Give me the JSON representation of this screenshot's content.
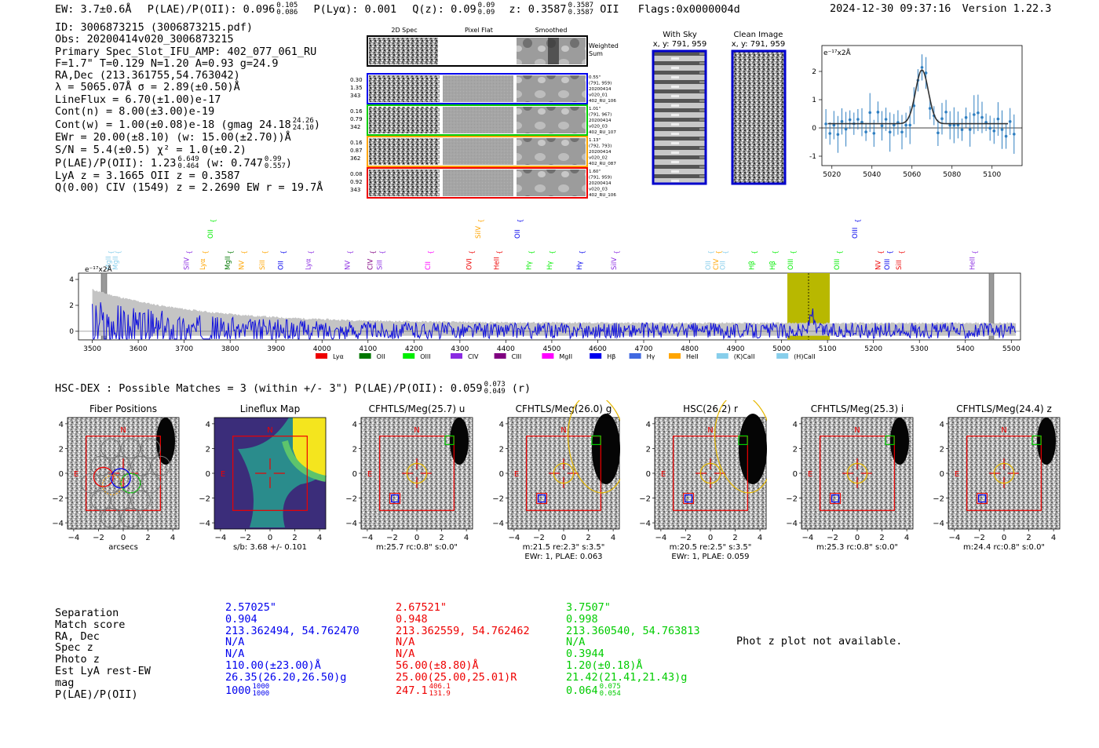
{
  "header": {
    "ew": "EW: 3.7±0.6Å",
    "plae_label": "P(LAE)/P(OII): 0.096",
    "plae_hi": "0.105",
    "plae_lo": "0.086",
    "plya": "P(Lyα): 0.001",
    "qz_label": "Q(z): 0.09",
    "qz_hi": "0.09",
    "qz_lo": "0.09",
    "z_label": "z: 0.3587",
    "z_hi": "0.3587",
    "z_lo": "0.3587",
    "z_line": "OII",
    "flags": "Flags:0x0000004d",
    "timestamp": "2024-12-30 09:37:16",
    "version": "Version 1.22.3"
  },
  "info": {
    "id": "ID: 3006873215 (3006873215.pdf)",
    "obs": "Obs: 20200414v020_3006873215",
    "slot": "Primary Spec_Slot_IFU_AMP: 402_077_061_RU",
    "fwhm": "F=1.7\"  T=0.129  N=1.20  A=0.93  g=24.9",
    "radec": "RA,Dec (213.361755,54.763042)",
    "lambda": "λ = 5065.07Å  σ = 2.89(±0.50)Å",
    "lineflux": "LineFlux = 6.70(±1.00)e-17",
    "contn": "Cont(n) = 8.00(±3.00)e-19",
    "contw": "Cont(w) = 1.00(±0.08)e-18 (gmag 24.18",
    "contw_hi": "24.26",
    "contw_lo": "24.10",
    "contw_end": ")",
    "ewr": "EWr = 20.00(±8.10) (w: 15.00(±2.70))Å",
    "sn": "S/N = 5.4(±0.5)  χ² = 1.0(±0.2)",
    "plae": "P(LAE)/P(OII): 1.23",
    "plae_hi": "6.649",
    "plae_lo": "0.464",
    "plae_w": "(w: 0.747",
    "plae_w_hi": "0.99",
    "plae_w_lo": "0.557",
    "plae_end": ")",
    "lyaz": "LyA z = 3.1665  OII z = 0.3587",
    "civ": "Q(0.00) CIV (1549) z = 2.2690  EW r = 19.7Å"
  },
  "cutouts": {
    "col_2d": "2D Spec",
    "col_flat": "Pixel Flat",
    "col_smooth": "Smoothed",
    "weighted": [
      "Weighted",
      "Sum"
    ],
    "rows": [
      {
        "left": [
          "0.30",
          "1.35",
          "343"
        ],
        "right": [
          "0.55\"",
          "(791, 959)",
          "20200414",
          "v020_01",
          "402_RU_106"
        ],
        "color": "#0000ee"
      },
      {
        "left": [
          "0.16",
          "0.79",
          "342"
        ],
        "right": [
          "1.01\"",
          "(791, 967)",
          "20200414",
          "v020_03",
          "402_RU_107"
        ],
        "color": "#00cc00"
      },
      {
        "left": [
          "0.16",
          "0.87",
          "362"
        ],
        "right": [
          "1.13\"",
          "(792, 793)",
          "20200414",
          "v020_02",
          "402_RU_087"
        ],
        "color": "#ffa500"
      },
      {
        "left": [
          "0.08",
          "0.92",
          "343"
        ],
        "right": [
          "1.60\"",
          "(791, 959)",
          "20200414",
          "v020_03",
          "402_RU_106"
        ],
        "color": "#ee0000"
      }
    ],
    "with_sky": [
      "With Sky",
      "x, y: 791, 959"
    ],
    "clean_image": [
      "Clean Image",
      "x, y: 791, 959"
    ]
  },
  "zoom_plot": {
    "unit": "e⁻¹⁷x2Å",
    "yticks": [
      "2",
      "1",
      "0",
      "-1"
    ],
    "xticks": [
      "5020",
      "5040",
      "5060",
      "5080",
      "5100"
    ]
  },
  "spectrum": {
    "unit": "e⁻¹⁷x2Å",
    "yticks": [
      "4",
      "2",
      "0"
    ],
    "xticks": [
      "3500",
      "3600",
      "3700",
      "3800",
      "3900",
      "4000",
      "4100",
      "4200",
      "4300",
      "4400",
      "4500",
      "4600",
      "4700",
      "4800",
      "4900",
      "5000",
      "5100",
      "5200",
      "5300",
      "5400",
      "5500"
    ],
    "legend": [
      {
        "label": "Lyα",
        "color": "#ee0000"
      },
      {
        "label": "OII",
        "color": "#007700"
      },
      {
        "label": "OIII",
        "color": "#00ee00"
      },
      {
        "label": "CIV",
        "color": "#8a2be2"
      },
      {
        "label": "CIII",
        "color": "#800080"
      },
      {
        "label": "MgII",
        "color": "#ff00ff"
      },
      {
        "label": "Hβ",
        "color": "#0000ee"
      },
      {
        "label": "Hγ",
        "color": "#4169e1"
      },
      {
        "label": "HeII",
        "color": "#ffa500"
      },
      {
        "label": "(K)CaII",
        "color": "#87ceeb"
      },
      {
        "label": "(H)CaII",
        "color": "#87ceeb"
      }
    ],
    "line_labels": [
      {
        "t": "MgII",
        "c": "#87ceeb"
      },
      {
        "t": "MgII",
        "c": "#87ceeb"
      },
      {
        "t": "SiIV",
        "c": "#8a2be2"
      },
      {
        "t": "Lyα",
        "c": "#ffa500"
      },
      {
        "t": "OII",
        "c": "#00ee00"
      },
      {
        "t": "MgII",
        "c": "#007700"
      },
      {
        "t": "NV",
        "c": "#ffa500"
      },
      {
        "t": "SiII",
        "c": "#ffa500"
      },
      {
        "t": "OII",
        "c": "#0000ee"
      },
      {
        "t": "Lyα",
        "c": "#8a2be2"
      },
      {
        "t": "NV",
        "c": "#8a2be2"
      },
      {
        "t": "CIV",
        "c": "#800080"
      },
      {
        "t": "SiII",
        "c": "#8a2be2"
      },
      {
        "t": "CII",
        "c": "#ff00ff"
      },
      {
        "t": "OVI",
        "c": "#ee0000"
      },
      {
        "t": "SiIV",
        "c": "#ffa500"
      },
      {
        "t": "HeII",
        "c": "#ee0000"
      },
      {
        "t": "OII",
        "c": "#0000ee"
      },
      {
        "t": "Hγ",
        "c": "#00ee00"
      },
      {
        "t": "Hγ",
        "c": "#00ee00"
      },
      {
        "t": "Hγ",
        "c": "#0000ee"
      },
      {
        "t": "SiIV",
        "c": "#8a2be2"
      },
      {
        "t": "OII",
        "c": "#87ceeb"
      },
      {
        "t": "CIV",
        "c": "#ffa500"
      },
      {
        "t": "OII",
        "c": "#87ceeb"
      },
      {
        "t": "Hβ",
        "c": "#00ee00"
      },
      {
        "t": "Hβ",
        "c": "#00ee00"
      },
      {
        "t": "OIII",
        "c": "#00ee00"
      },
      {
        "t": "OIII",
        "c": "#00ee00"
      },
      {
        "t": "OIII",
        "c": "#0000ee"
      },
      {
        "t": "NV",
        "c": "#ee0000"
      },
      {
        "t": "OIII",
        "c": "#0000ee"
      },
      {
        "t": "SiII",
        "c": "#ee0000"
      },
      {
        "t": "HeII",
        "c": "#8a2be2"
      }
    ]
  },
  "hsc": {
    "title": "HSC-DEX : Possible Matches = 3 (within +/- 3\")  P(LAE)/P(OII): 0.059",
    "hi": "0.073",
    "lo": "0.049",
    "band": "(r)"
  },
  "panels": [
    {
      "title": "Fiber Positions",
      "sub1": "arcsecs",
      "sub2": ""
    },
    {
      "title": "Lineflux Map",
      "sub1": "s/b: 3.68 +/- 0.101",
      "sub2": ""
    },
    {
      "title": "CFHTLS/Meg(25.7) u",
      "sub1": "m:25.7 rc:0.8\"  s:0.0\"",
      "sub2": ""
    },
    {
      "title": "CFHTLS/Meg(26.0) g",
      "sub1": "m:21.5  re:2.3\"  s:3.5\"",
      "sub2": "EWr: 1, PLAE: 0.063"
    },
    {
      "title": "HSC(26.2) r",
      "sub1": "m:20.5  re:2.5\"  s:3.5\"",
      "sub2": "EWr: 1, PLAE: 0.059"
    },
    {
      "title": "CFHTLS/Meg(25.3) i",
      "sub1": "m:25.3 rc:0.8\"  s:0.0\"",
      "sub2": ""
    },
    {
      "title": "CFHTLS/Meg(24.4) z",
      "sub1": "m:24.4 rc:0.8\"  s:0.0\"",
      "sub2": ""
    }
  ],
  "panel_axis": {
    "ticks": [
      "4",
      "2",
      "0",
      "−2",
      "−4"
    ],
    "xticks": [
      "−4",
      "−2",
      "0",
      "2",
      "4"
    ],
    "n": "N",
    "e": "E"
  },
  "table": {
    "labels": [
      "Separation",
      "Match score",
      "RA, Dec",
      "Spec z",
      "Photo z",
      "Est LyA rest-EW",
      "mag",
      "P(LAE)/P(OII)"
    ],
    "cols": [
      {
        "vals": [
          "2.57025\"",
          "0.904",
          "213.362494, 54.762470",
          "N/A",
          "N/A",
          "110.00(±23.00)Å",
          "26.35(26.20,26.50)g",
          "1000"
        ],
        "hi": "1000",
        "lo": "1000"
      },
      {
        "vals": [
          "2.67521\"",
          "0.948",
          "213.362559, 54.762462",
          "N/A",
          "N/A",
          "56.00(±8.80)Å",
          "25.00(25.00,25.01)R",
          "247.1"
        ],
        "hi": "406.1",
        "lo": "131.9"
      },
      {
        "vals": [
          "3.7507\"",
          "0.998",
          "213.360540, 54.763813",
          "N/A",
          "0.3944",
          "1.20(±0.18)Å",
          "21.42(21.41,21.43)g",
          "0.064"
        ],
        "hi": "0.075",
        "lo": "0.054"
      }
    ],
    "photz_note": "Phot z plot not available."
  },
  "colors": {
    "blue": "#0000ee",
    "red": "#ee0000",
    "green": "#00cc00",
    "orange": "#ffa500",
    "olive": "#b8b800",
    "spec_blue": "#1010dd"
  }
}
